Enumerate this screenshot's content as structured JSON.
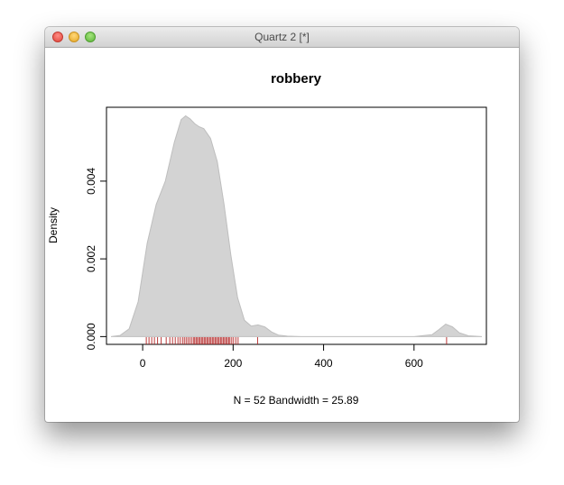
{
  "window": {
    "title": "Quartz 2 [*]"
  },
  "chart_data": {
    "type": "area",
    "title": "robbery",
    "xlabel": "N = 52   Bandwidth = 25.89",
    "ylabel": "Density",
    "xlim": [
      -80,
      760
    ],
    "ylim": [
      -0.0002,
      0.0059
    ],
    "x_ticks": [
      {
        "value": 0,
        "label": "0"
      },
      {
        "value": 200,
        "label": "200"
      },
      {
        "value": 400,
        "label": "400"
      },
      {
        "value": 600,
        "label": "600"
      }
    ],
    "y_ticks": [
      {
        "value": 0.0,
        "label": "0.000"
      },
      {
        "value": 0.002,
        "label": "0.002"
      },
      {
        "value": 0.004,
        "label": "0.004"
      }
    ],
    "fill_color": "#d3d3d3",
    "line_color": "#bebebe",
    "rug_color": "#b22222",
    "density_curve": {
      "x": [
        -70,
        -50,
        -30,
        -10,
        10,
        30,
        50,
        70,
        85,
        95,
        105,
        115,
        125,
        135,
        150,
        165,
        180,
        195,
        210,
        225,
        240,
        255,
        270,
        285,
        300,
        320,
        350,
        400,
        500,
        600,
        640,
        655,
        670,
        685,
        700,
        720,
        750
      ],
      "y": [
        0.0,
        3e-05,
        0.0002,
        0.0009,
        0.0024,
        0.0034,
        0.004,
        0.005,
        0.00558,
        0.00568,
        0.0056,
        0.00548,
        0.0054,
        0.00535,
        0.0051,
        0.0045,
        0.0034,
        0.0021,
        0.001,
        0.00042,
        0.00027,
        0.0003,
        0.00025,
        0.00012,
        4e-05,
        1e-05,
        0.0,
        0.0,
        0.0,
        0.0,
        5e-05,
        0.00018,
        0.00032,
        0.00025,
        0.0001,
        2e-05,
        0.0
      ]
    },
    "rug_x": [
      8,
      14,
      20,
      26,
      33,
      41,
      52,
      60,
      66,
      72,
      78,
      83,
      88,
      92,
      96,
      100,
      104,
      108,
      112,
      115,
      118,
      121,
      124,
      127,
      130,
      133,
      136,
      139,
      142,
      145,
      148,
      151,
      154,
      157,
      160,
      163,
      166,
      169,
      172,
      175,
      178,
      181,
      184,
      187,
      190,
      193,
      197,
      201,
      206,
      211,
      254,
      672
    ]
  }
}
